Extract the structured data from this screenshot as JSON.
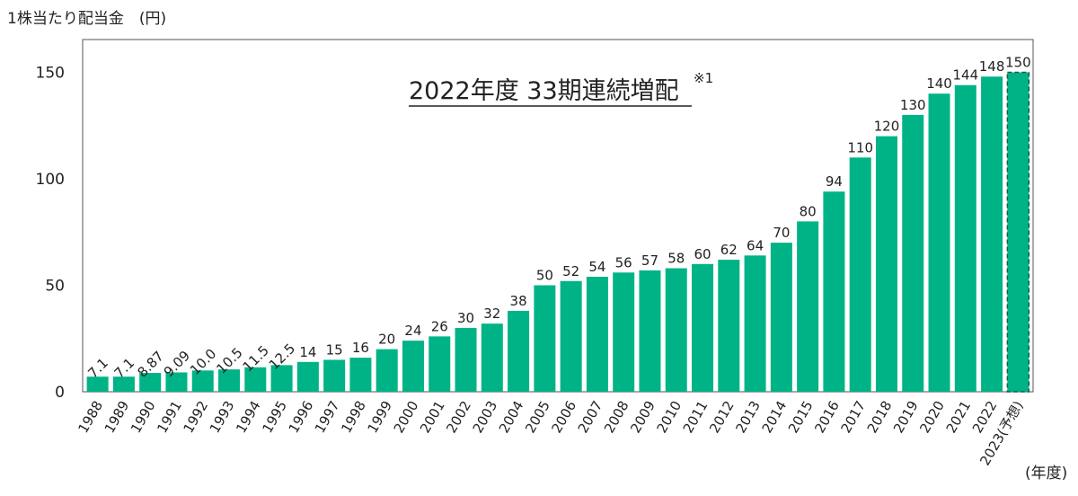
{
  "chart_data": {
    "type": "bar",
    "ylabel": "1株当たり配当金　(円)",
    "xunit": "(年度)",
    "headline": "2022年度 33期連続増配",
    "headline_note": "※1",
    "ylim": [
      0,
      160
    ],
    "yticks": [
      0,
      50,
      100,
      150
    ],
    "bar_color": "#00b386",
    "forecast_border_color": "#1a5f43",
    "categories": [
      "1988",
      "1989",
      "1990",
      "1991",
      "1992",
      "1993",
      "1994",
      "1995",
      "1996",
      "1997",
      "1998",
      "1999",
      "2000",
      "2001",
      "2002",
      "2003",
      "2004",
      "2005",
      "2006",
      "2007",
      "2008",
      "2009",
      "2010",
      "2011",
      "2012",
      "2013",
      "2014",
      "2015",
      "2016",
      "2017",
      "2018",
      "2019",
      "2020",
      "2021",
      "2022",
      "2023(予想)"
    ],
    "values": [
      7.1,
      7.1,
      8.87,
      9.09,
      10.0,
      10.5,
      11.5,
      12.5,
      14,
      15,
      16,
      20,
      24,
      26,
      30,
      32,
      38,
      50,
      52,
      54,
      56,
      57,
      58,
      60,
      62,
      64,
      70,
      80,
      94,
      110,
      120,
      130,
      140,
      144,
      148,
      150
    ],
    "value_labels": [
      "7.1",
      "7.1",
      "8.87",
      "9.09",
      "10.0",
      "10.5",
      "11.5",
      "12.5",
      "14",
      "15",
      "16",
      "20",
      "24",
      "26",
      "30",
      "32",
      "38",
      "50",
      "52",
      "54",
      "56",
      "57",
      "58",
      "60",
      "62",
      "64",
      "70",
      "80",
      "94",
      "110",
      "120",
      "130",
      "140",
      "144",
      "148",
      "150"
    ],
    "forecast_index": 35
  }
}
